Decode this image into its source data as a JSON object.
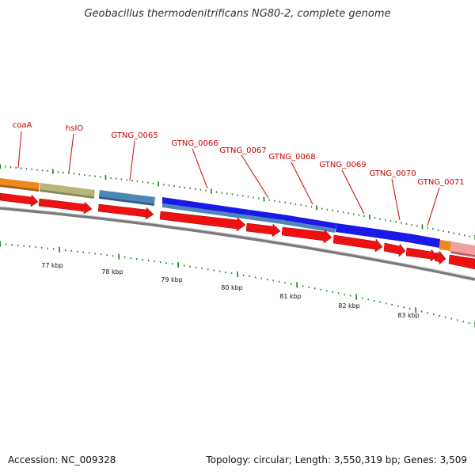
{
  "title": "Geobacillus thermodenitrificans NG80-2, complete genome",
  "accession": "Accession: NC_009328",
  "summary": "Topology: circular; Length: 3,550,319 bp; Genes: 3,509",
  "colors": {
    "background": "#ffffff",
    "backbone": "#7a7a7a",
    "tick": "#1a7a1a",
    "label": "#cc0000",
    "cds_arrow": "#ee1111",
    "feature_orange": "#ef8a1a",
    "feature_olive": "#b8b47a",
    "feature_steel": "#4f86b8",
    "feature_blue": "#1a1ae8",
    "feature_pink": "#f0a0a0"
  },
  "gene_labels": [
    "coaA",
    "hslO",
    "GTNG_0065",
    "GTNG_0066",
    "GTNG_0067",
    "GTNG_0068",
    "GTNG_0069",
    "GTNG_0070",
    "GTNG_0071"
  ],
  "kbp_ticks": [
    "77 kbp",
    "78 kbp",
    "79 kbp",
    "80 kbp",
    "81 kbp",
    "82 kbp",
    "83 kbp"
  ]
}
